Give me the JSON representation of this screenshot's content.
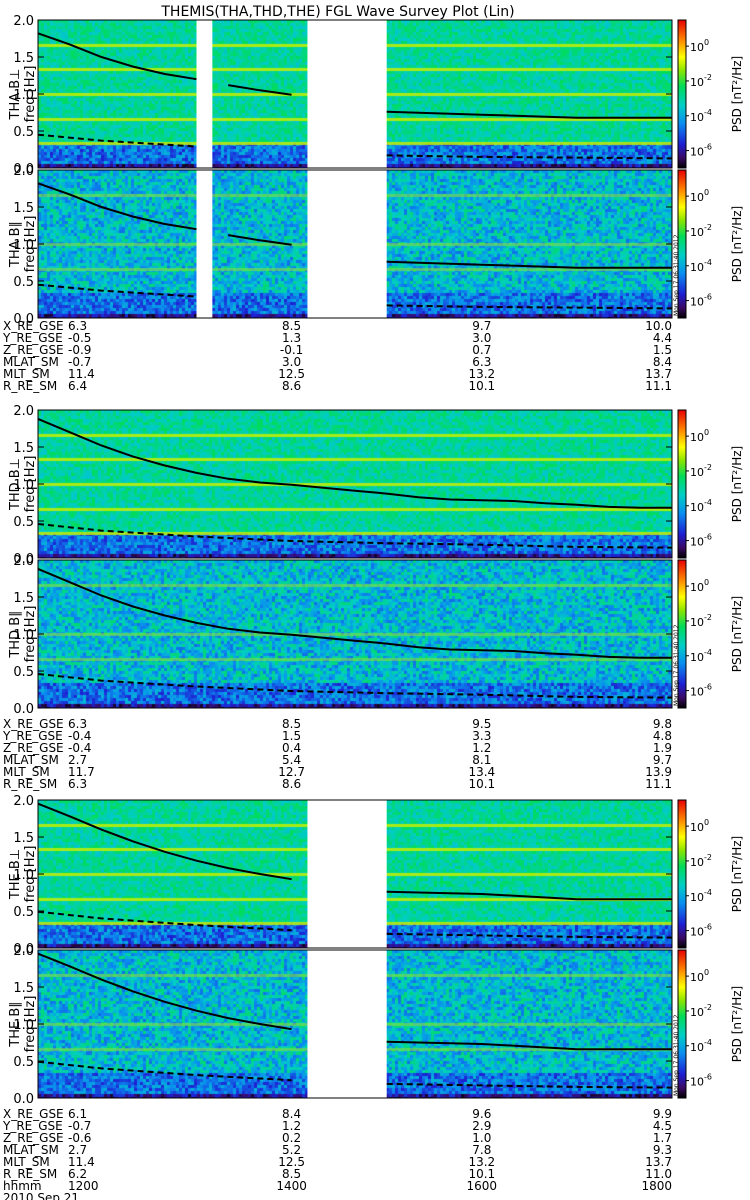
{
  "chart_data": {
    "type": "heatmap",
    "title": "THEMIS(THA,THD,THE) FGL Wave Survey Plot (Lin)",
    "x_axis": {
      "units": "hhmm",
      "range": [
        1120,
        1800
      ],
      "ticks": [
        "1200",
        "1400",
        "1600",
        "1800"
      ],
      "date": "2010 Sep 21"
    },
    "y_axis": {
      "label": "freq [Hz]",
      "range": [
        0,
        2.0
      ],
      "ticks": [
        "0.0",
        "0.5",
        "1.0",
        "1.5",
        "2.0"
      ]
    },
    "colorbar": {
      "label": "PSD [nT²/Hz]",
      "log_range": [
        -7,
        1.5
      ],
      "ticks": [
        {
          "mantissa": "10",
          "exp": "0",
          "log": 0
        },
        {
          "mantissa": "10",
          "exp": "-2",
          "log": -2
        },
        {
          "mantissa": "10",
          "exp": "-4",
          "log": -4
        },
        {
          "mantissa": "10",
          "exp": "-6",
          "log": -6
        }
      ]
    },
    "stamp": "Mon Sep 17 06:31:40 2012",
    "panels": [
      {
        "probe": "THA",
        "component": "perp",
        "ylabel": "THA B⊥",
        "gaps": [
          [
            1300,
            1310
          ],
          [
            1410,
            1500
          ]
        ],
        "stamp": false
      },
      {
        "probe": "THA",
        "component": "par",
        "ylabel": "THA B∥",
        "gaps": [
          [
            1300,
            1310
          ],
          [
            1410,
            1500
          ]
        ],
        "stamp": true
      },
      {
        "probe": "THD",
        "component": "perp",
        "ylabel": "THD B⊥",
        "gaps": [],
        "stamp": false
      },
      {
        "probe": "THD",
        "component": "par",
        "ylabel": "THD B∥",
        "gaps": [],
        "stamp": true
      },
      {
        "probe": "THE",
        "component": "perp",
        "ylabel": "THE B⊥",
        "gaps": [
          [
            1410,
            1500
          ]
        ],
        "stamp": false
      },
      {
        "probe": "THE",
        "component": "par",
        "ylabel": "THE B∥",
        "gaps": [
          [
            1410,
            1500
          ]
        ],
        "stamp": true
      }
    ],
    "solid_line_label": "",
    "solid_line": {
      "THA": [
        [
          1120,
          1.82
        ],
        [
          1140,
          1.67
        ],
        [
          1200,
          1.5
        ],
        [
          1220,
          1.37
        ],
        [
          1240,
          1.27
        ],
        [
          1300,
          1.2
        ],
        [
          1320,
          1.12
        ],
        [
          1340,
          1.05
        ],
        [
          1400,
          0.99
        ],
        [
          1420,
          0.94
        ],
        [
          1500,
          0.76
        ],
        [
          1600,
          0.72
        ],
        [
          1700,
          0.68
        ],
        [
          1800,
          0.68
        ]
      ],
      "THD": [
        [
          1120,
          1.88
        ],
        [
          1140,
          1.7
        ],
        [
          1200,
          1.52
        ],
        [
          1220,
          1.37
        ],
        [
          1240,
          1.25
        ],
        [
          1300,
          1.15
        ],
        [
          1320,
          1.07
        ],
        [
          1340,
          1.02
        ],
        [
          1400,
          0.99
        ],
        [
          1420,
          0.95
        ],
        [
          1440,
          0.91
        ],
        [
          1500,
          0.87
        ],
        [
          1520,
          0.82
        ],
        [
          1540,
          0.79
        ],
        [
          1600,
          0.78
        ],
        [
          1620,
          0.77
        ],
        [
          1640,
          0.74
        ],
        [
          1700,
          0.72
        ],
        [
          1720,
          0.69
        ],
        [
          1740,
          0.68
        ],
        [
          1800,
          0.68
        ]
      ],
      "THE": [
        [
          1120,
          1.95
        ],
        [
          1140,
          1.78
        ],
        [
          1200,
          1.6
        ],
        [
          1220,
          1.44
        ],
        [
          1240,
          1.3
        ],
        [
          1300,
          1.18
        ],
        [
          1320,
          1.08
        ],
        [
          1340,
          1.0
        ],
        [
          1400,
          0.93
        ],
        [
          1500,
          0.76
        ],
        [
          1540,
          0.74
        ],
        [
          1600,
          0.73
        ],
        [
          1700,
          0.66
        ],
        [
          1800,
          0.66
        ]
      ]
    },
    "dashed_line": {
      "THA": [
        [
          1120,
          0.45
        ],
        [
          1200,
          0.37
        ],
        [
          1300,
          0.29
        ],
        [
          1400,
          0.22
        ],
        [
          1500,
          0.17
        ],
        [
          1600,
          0.15
        ],
        [
          1700,
          0.14
        ],
        [
          1800,
          0.13
        ]
      ],
      "THD": [
        [
          1120,
          0.46
        ],
        [
          1200,
          0.37
        ],
        [
          1300,
          0.29
        ],
        [
          1400,
          0.23
        ],
        [
          1500,
          0.2
        ],
        [
          1600,
          0.18
        ],
        [
          1700,
          0.15
        ],
        [
          1800,
          0.14
        ]
      ],
      "THE": [
        [
          1120,
          0.49
        ],
        [
          1200,
          0.4
        ],
        [
          1300,
          0.31
        ],
        [
          1400,
          0.24
        ],
        [
          1500,
          0.19
        ],
        [
          1600,
          0.17
        ],
        [
          1700,
          0.15
        ],
        [
          1800,
          0.14
        ]
      ]
    },
    "ephemeris": [
      {
        "probe": "THA",
        "rows": [
          {
            "label": "X_RE_GSE",
            "values": [
              "6.3",
              "8.5",
              "9.7",
              "10.0"
            ]
          },
          {
            "label": "Y_RE_GSE",
            "values": [
              "-0.5",
              "1.3",
              "3.0",
              "4.4"
            ]
          },
          {
            "label": "Z_RE_GSE",
            "values": [
              "-0.9",
              "-0.1",
              "0.7",
              "1.5"
            ]
          },
          {
            "label": "MLAT_SM",
            "values": [
              "-0.7",
              "3.0",
              "6.3",
              "8.4"
            ]
          },
          {
            "label": "MLT_SM",
            "values": [
              "11.4",
              "12.5",
              "13.2",
              "13.7"
            ]
          },
          {
            "label": "R_RE_SM",
            "values": [
              "6.4",
              "8.6",
              "10.1",
              "11.1"
            ]
          }
        ]
      },
      {
        "probe": "THD",
        "rows": [
          {
            "label": "X_RE_GSE",
            "values": [
              "6.3",
              "8.5",
              "9.5",
              "9.8"
            ]
          },
          {
            "label": "Y_RE_GSE",
            "values": [
              "-0.4",
              "1.5",
              "3.3",
              "4.8"
            ]
          },
          {
            "label": "Z_RE_GSE",
            "values": [
              "-0.4",
              "0.4",
              "1.2",
              "1.9"
            ]
          },
          {
            "label": "MLAT_SM",
            "values": [
              "2.7",
              "5.4",
              "8.1",
              "9.7"
            ]
          },
          {
            "label": "MLT_SM",
            "values": [
              "11.7",
              "12.7",
              "13.4",
              "13.9"
            ]
          },
          {
            "label": "R_RE_SM",
            "values": [
              "6.3",
              "8.6",
              "10.1",
              "11.1"
            ]
          }
        ]
      },
      {
        "probe": "THE",
        "rows": [
          {
            "label": "X_RE_GSE",
            "values": [
              "6.1",
              "8.4",
              "9.6",
              "9.9"
            ]
          },
          {
            "label": "Y_RE_GSE",
            "values": [
              "-0.7",
              "1.2",
              "2.9",
              "4.5"
            ]
          },
          {
            "label": "Z_RE_GSE",
            "values": [
              "-0.6",
              "0.2",
              "1.0",
              "1.7"
            ]
          },
          {
            "label": "MLAT_SM",
            "values": [
              "2.7",
              "5.2",
              "7.8",
              "9.3"
            ]
          },
          {
            "label": "MLT_SM",
            "values": [
              "11.4",
              "12.5",
              "13.2",
              "13.7"
            ]
          },
          {
            "label": "R_RE_SM",
            "values": [
              "6.2",
              "8.5",
              "10.1",
              "11.0"
            ]
          }
        ]
      }
    ],
    "time_row_label": "hhmm"
  }
}
